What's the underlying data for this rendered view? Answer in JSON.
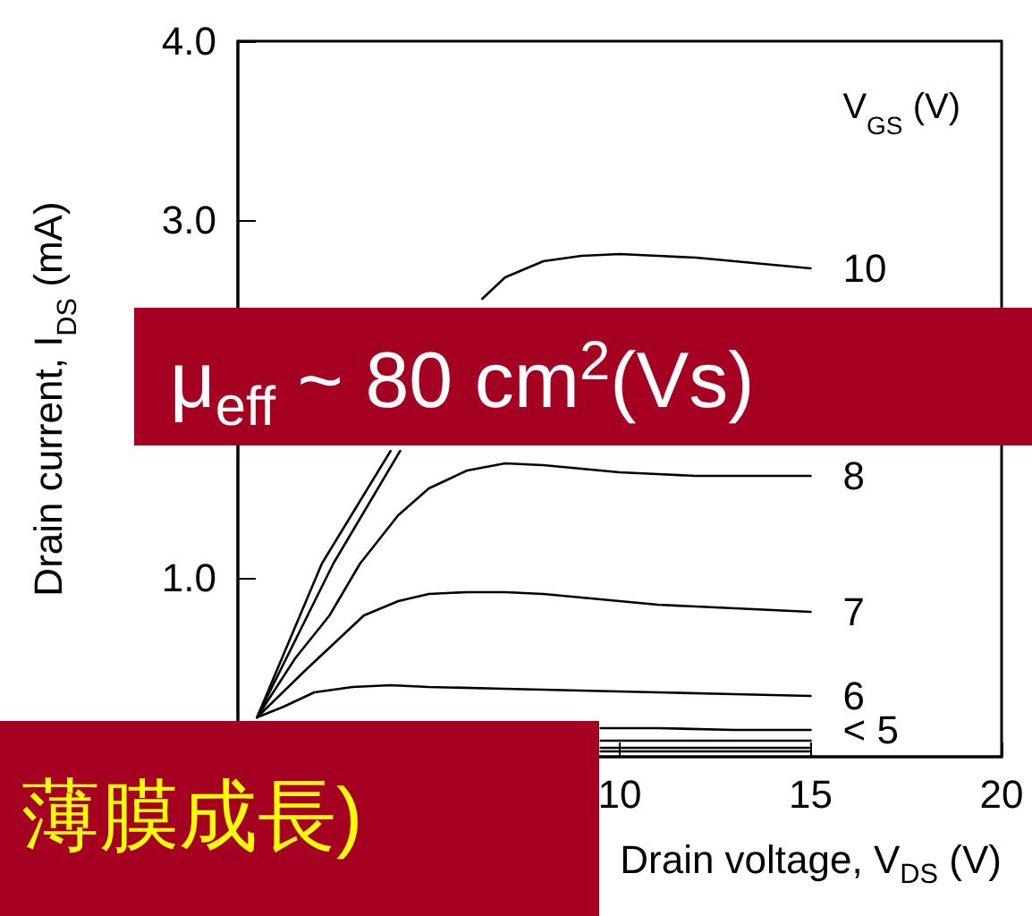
{
  "chart_data": {
    "type": "line",
    "xlabel": "Drain voltage, V$_{DS}$ (V)",
    "ylabel": "Drain current, I$_{DS}$ (mA)",
    "legend_title": "V$_{GS}$ (V)",
    "annotations": [
      "μ$_{eff}$  ~ 80 cm$^{2}$(Vs)",
      "薄膜成長)"
    ],
    "xlim": [
      0,
      20
    ],
    "xticks": [
      10,
      15,
      20
    ],
    "ylim": [
      0,
      4
    ],
    "yticks": [
      {
        "value": 1,
        "label": "1.0"
      },
      {
        "value": 3,
        "label": "3.0"
      },
      {
        "value": 4,
        "label": "4.0"
      }
    ],
    "grid": false,
    "marker": "none",
    "line_style": "solid",
    "series": [
      {
        "name": "10",
        "color": "#000000",
        "x": [
          0.5,
          2.2,
          4.0,
          5.2,
          6.4,
          7,
          8,
          9,
          10,
          11,
          12,
          13,
          14,
          15
        ],
        "values": [
          0.22,
          1.08,
          1.71,
          null,
          2.56,
          2.68,
          2.77,
          2.8,
          2.81,
          2.8,
          2.79,
          2.77,
          2.75,
          2.73
        ]
      },
      {
        "color": "#000000",
        "x": [
          0.5,
          2.5,
          4.25
        ],
        "values": [
          0.22,
          1.08,
          1.71
        ]
      },
      {
        "name": "8",
        "color": "#000000",
        "x": [
          0.5,
          1.5,
          2.4,
          3.2,
          4.2,
          5,
          6,
          7,
          8,
          9,
          10,
          11,
          12,
          13,
          14,
          15
        ],
        "values": [
          0.22,
          0.55,
          0.79,
          1.08,
          1.35,
          1.5,
          1.6,
          1.64,
          1.63,
          1.61,
          1.59,
          1.58,
          1.57,
          1.57,
          1.57,
          1.57
        ]
      },
      {
        "name": "7",
        "color": "#000000",
        "x": [
          0.5,
          1.8,
          3.3,
          4.2,
          5,
          6,
          7,
          8,
          9,
          10,
          11,
          12,
          13,
          14,
          15
        ],
        "values": [
          0.22,
          0.49,
          0.79,
          0.87,
          0.91,
          0.92,
          0.92,
          0.91,
          0.89,
          0.87,
          0.85,
          0.84,
          0.83,
          0.82,
          0.81
        ]
      },
      {
        "name": "6",
        "color": "#000000",
        "x": [
          0.5,
          1.2,
          2,
          3,
          4,
          5,
          7,
          9,
          11,
          13,
          15
        ],
        "values": [
          0.22,
          0.28,
          0.36,
          0.39,
          0.4,
          0.39,
          0.38,
          0.37,
          0.36,
          0.35,
          0.34
        ]
      },
      {
        "name": "< 5",
        "color": "#000000",
        "x": [
          9.5,
          11,
          13,
          15
        ],
        "values": [
          0.16,
          0.16,
          0.15,
          0.15
        ]
      },
      {
        "color": "#000000",
        "x": [
          9.5,
          11,
          13,
          15
        ],
        "values": [
          0.09,
          0.09,
          0.09,
          0.09
        ]
      },
      {
        "color": "#000000",
        "x": [
          9.5,
          11,
          13,
          15
        ],
        "values": [
          0.05,
          0.05,
          0.05,
          0.05
        ]
      },
      {
        "color": "#000000",
        "x": [
          9.5,
          11,
          13,
          15
        ],
        "values": [
          0.03,
          0.03,
          0.03,
          0.03
        ]
      }
    ]
  }
}
